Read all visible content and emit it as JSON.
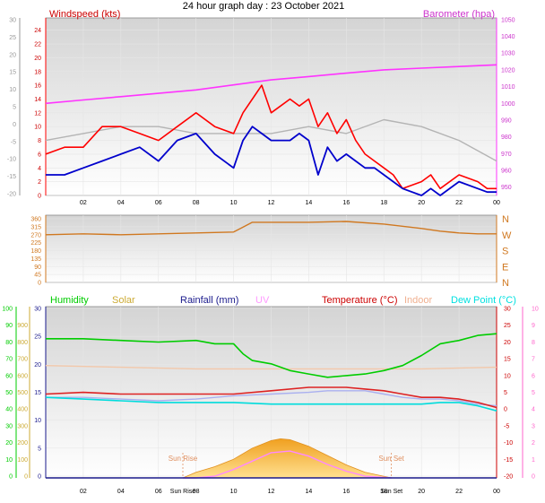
{
  "title": "24 hour graph day : 23 October 2021",
  "chart_data": [
    {
      "type": "line",
      "panel": "wind-pressure",
      "left_label": "Windspeed (kts)",
      "right_label": "Barometer (hpa)",
      "outer_left_ticks": [
        "30",
        "25",
        "20",
        "15",
        "10",
        "5",
        "0",
        "-5",
        "-10",
        "-15",
        "-20"
      ],
      "windspeed_ticks": [
        "24",
        "22",
        "20",
        "18",
        "16",
        "14",
        "12",
        "10",
        "8",
        "6",
        "4",
        "2",
        "0"
      ],
      "barometer_ticks": [
        "1050",
        "1040",
        "1030",
        "1020",
        "1010",
        "1000",
        "990",
        "980",
        "970",
        "960",
        "950"
      ],
      "ylim_windspeed": [
        0,
        25
      ],
      "ylim_barometer": [
        945,
        1051
      ],
      "x_ticks": [
        "02",
        "04",
        "06",
        "08",
        "10",
        "12",
        "14",
        "16",
        "18",
        "20",
        "22",
        "00"
      ],
      "series": [
        {
          "name": "Windspeed (kts)",
          "color": "#ff0000",
          "x": [
            0,
            1,
            2,
            3,
            4,
            5,
            6,
            7,
            8,
            9,
            10,
            10.5,
            11,
            11.5,
            12,
            12.5,
            13,
            13.5,
            14,
            14.5,
            15,
            15.5,
            16,
            16.5,
            17,
            17.5,
            18,
            18.5,
            19,
            20,
            20.5,
            21,
            22,
            23,
            23.5,
            24
          ],
          "values": [
            6,
            7,
            7,
            10,
            10,
            9,
            8,
            10,
            12,
            10,
            9,
            12,
            14,
            16,
            12,
            13,
            14,
            13,
            14,
            10,
            12,
            9,
            11,
            8,
            6,
            5,
            4,
            3,
            1,
            2,
            3,
            1,
            3,
            2,
            1,
            1
          ]
        },
        {
          "name": "Gust",
          "color": "#0000cc",
          "x": [
            0,
            1,
            2,
            3,
            4,
            5,
            6,
            7,
            8,
            9,
            10,
            10.5,
            11,
            11.5,
            12,
            12.5,
            13,
            13.5,
            14,
            14.5,
            15,
            15.5,
            16,
            16.5,
            17,
            17.5,
            18,
            18.5,
            19,
            20,
            20.5,
            21,
            22,
            23,
            23.5,
            24
          ],
          "values": [
            3,
            3,
            4,
            5,
            6,
            7,
            5,
            8,
            9,
            6,
            4,
            8,
            10,
            9,
            8,
            8,
            8,
            9,
            8,
            3,
            7,
            5,
            6,
            5,
            4,
            4,
            3,
            2,
            1,
            0,
            1,
            0,
            2,
            1,
            0.5,
            0.5
          ]
        },
        {
          "name": "Barometer (hpa)",
          "color": "#ff33ff",
          "x": [
            0,
            2,
            4,
            6,
            8,
            10,
            12,
            14,
            16,
            18,
            20,
            22,
            24
          ],
          "values": [
            1000,
            1002,
            1004,
            1006,
            1008,
            1011,
            1014,
            1016,
            1018,
            1020,
            1021,
            1022,
            1023
          ]
        },
        {
          "name": "",
          "color": "#b4b4b4",
          "x": [
            0,
            2,
            4,
            6,
            8,
            10,
            12,
            14,
            16,
            18,
            20,
            22,
            24
          ],
          "values": [
            8,
            9,
            10,
            10,
            9,
            9,
            9,
            10,
            9,
            11,
            10,
            8,
            5
          ]
        }
      ]
    },
    {
      "type": "line",
      "panel": "wind-direction",
      "left_ticks": [
        "360",
        "315",
        "270",
        "225",
        "180",
        "135",
        "90",
        "45",
        "0"
      ],
      "right_ticks": [
        "N",
        "W",
        "S",
        "E",
        "N"
      ],
      "ylim": [
        0,
        360
      ],
      "series": [
        {
          "name": "",
          "color": "#d07820",
          "x": [
            0,
            2,
            4,
            6,
            8,
            10,
            11,
            12,
            14,
            16,
            18,
            20,
            21,
            22,
            23,
            24
          ],
          "values": [
            270,
            275,
            270,
            275,
            280,
            285,
            340,
            340,
            340,
            345,
            330,
            305,
            290,
            280,
            275,
            275
          ]
        }
      ]
    },
    {
      "type": "line",
      "panel": "temp-humidity",
      "labels": [
        "Humidity",
        "Solar",
        "Rainfall (mm)",
        "UV",
        "Temperature (°C)",
        "Indoor",
        "Dew Point (°C)"
      ],
      "label_colors": [
        "#00cc00",
        "#ccaa33",
        "#1a1a8c",
        "#ff99ff",
        "#cc0000",
        "#f0b090",
        "#00e0e0"
      ],
      "humidity_ticks": [
        "100",
        "90",
        "80",
        "70",
        "60",
        "50",
        "40",
        "30",
        "20",
        "10",
        "0"
      ],
      "solar_ticks": [
        "900",
        "800",
        "700",
        "600",
        "500",
        "400",
        "300",
        "200",
        "100",
        "0"
      ],
      "rain_ticks": [
        "30",
        "25",
        "20",
        "15",
        "10",
        "5",
        "0"
      ],
      "temp_ticks": [
        "30",
        "25",
        "20",
        "15",
        "10",
        "5",
        "0",
        "-5",
        "-10",
        "-15",
        "-20"
      ],
      "uv_ticks": [
        "10",
        "9",
        "8",
        "7",
        "6",
        "5",
        "4",
        "3",
        "2",
        "1",
        "0"
      ],
      "x_ticks": [
        "02",
        "04",
        "06",
        "08",
        "10",
        "12",
        "14",
        "16",
        "18",
        "20",
        "22",
        "00"
      ],
      "sun_rise": {
        "label": "Sun Rise",
        "hour": 7.3
      },
      "sun_set": {
        "label": "Sun Set",
        "hour": 18.4
      },
      "series": [
        {
          "name": "Humidity",
          "color": "#00cc00",
          "axis": "humidity",
          "x": [
            0,
            2,
            4,
            6,
            8,
            9,
            10,
            10.5,
            11,
            12,
            13,
            14,
            15,
            16,
            17,
            18,
            19,
            20,
            21,
            22,
            23,
            24
          ],
          "values": [
            83,
            83,
            82,
            81,
            82,
            80,
            80,
            74,
            70,
            68,
            64,
            62,
            60,
            61,
            62,
            64,
            67,
            73,
            80,
            82,
            85,
            86
          ]
        },
        {
          "name": "Temperature (°C)",
          "color": "#dd2222",
          "axis": "temp",
          "x": [
            0,
            2,
            4,
            6,
            8,
            10,
            12,
            14,
            15,
            16,
            17,
            18,
            19,
            20,
            21,
            22,
            23,
            24
          ],
          "values": [
            5,
            5.5,
            5,
            5,
            5,
            5,
            6,
            7,
            7,
            7,
            6.5,
            6,
            5,
            4,
            4,
            3.5,
            2.5,
            1
          ]
        },
        {
          "name": "Indoor",
          "color": "#f3c8aa",
          "axis": "temp",
          "x": [
            0,
            4,
            8,
            12,
            16,
            20,
            24
          ],
          "values": [
            13.5,
            13,
            12.5,
            12.5,
            12.5,
            12.5,
            13
          ]
        },
        {
          "name": "",
          "color": "#aab0f0",
          "axis": "temp",
          "x": [
            0,
            2,
            4,
            6,
            8,
            10,
            12,
            14,
            15,
            16,
            17,
            18,
            19,
            20,
            21,
            22,
            23,
            24
          ],
          "values": [
            4,
            4,
            3.5,
            3,
            3.5,
            4.5,
            5,
            5.5,
            6,
            6,
            6,
            5,
            4,
            3.5,
            3.5,
            3,
            2,
            1.5
          ]
        },
        {
          "name": "Dew Point (°C)",
          "color": "#00dcdc",
          "axis": "temp",
          "x": [
            0,
            2,
            4,
            6,
            8,
            10,
            12,
            14,
            16,
            18,
            20,
            21,
            22,
            23,
            24
          ],
          "values": [
            4,
            3.5,
            3,
            2.5,
            2.5,
            2.5,
            2,
            2,
            2,
            2,
            2,
            2.5,
            2.5,
            1.5,
            0
          ]
        },
        {
          "name": "Solar",
          "color": "#f0a830",
          "axis": "solar",
          "type": "area",
          "x": [
            7.3,
            8,
            9,
            10,
            11,
            12,
            12.5,
            13,
            14,
            15,
            16,
            17,
            18.4
          ],
          "values": [
            0,
            30,
            60,
            100,
            160,
            200,
            210,
            205,
            170,
            120,
            70,
            30,
            0
          ]
        },
        {
          "name": "UV",
          "color": "#ff88ff",
          "axis": "uv",
          "x": [
            7.3,
            8,
            9,
            10,
            11,
            12,
            13,
            14,
            15,
            16,
            17,
            18.4
          ],
          "values": [
            0,
            0,
            0.1,
            0.5,
            1,
            1.5,
            1.6,
            1.3,
            0.8,
            0.4,
            0.1,
            0
          ]
        },
        {
          "name": "Rainfall (mm)",
          "color": "#1a1a8c",
          "axis": "rain",
          "x": [
            0,
            24
          ],
          "values": [
            0,
            0
          ]
        }
      ]
    }
  ]
}
